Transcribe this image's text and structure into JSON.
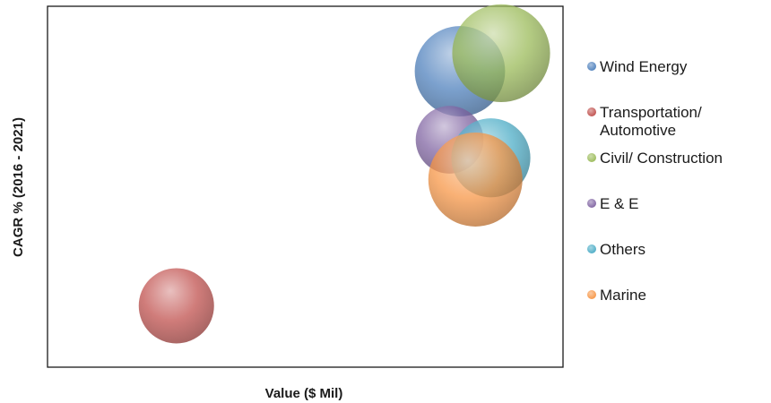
{
  "chart_data": {
    "type": "bubble",
    "title": "",
    "xlabel": "Value ($ Mil)",
    "ylabel": "CAGR % (2016 - 2021)",
    "x_ticks_shown": false,
    "y_ticks_shown": false,
    "grid": false,
    "legend_position": "right",
    "series": [
      {
        "name": "Wind Energy",
        "x": 80,
        "y": 82,
        "size": 24,
        "color": "#4f81bd",
        "legend_lines": [
          "Wind Energy"
        ]
      },
      {
        "name": "Transportation/ Automotive",
        "x": 25,
        "y": 17,
        "size": 20,
        "color": "#c0504d",
        "legend_lines": [
          "Transportation/",
          "Automotive"
        ]
      },
      {
        "name": "Civil/ Construction",
        "x": 88,
        "y": 87,
        "size": 26,
        "color": "#9bbb59",
        "legend_lines": [
          "Civil/ Construction"
        ]
      },
      {
        "name": "E & E",
        "x": 78,
        "y": 63,
        "size": 18,
        "color": "#8064a2",
        "legend_lines": [
          "E & E"
        ]
      },
      {
        "name": "Others",
        "x": 86,
        "y": 58,
        "size": 21,
        "color": "#4bacc6",
        "legend_lines": [
          "Others"
        ]
      },
      {
        "name": "Marine",
        "x": 83,
        "y": 52,
        "size": 25,
        "color": "#f79646",
        "legend_lines": [
          "Marine"
        ]
      }
    ]
  }
}
